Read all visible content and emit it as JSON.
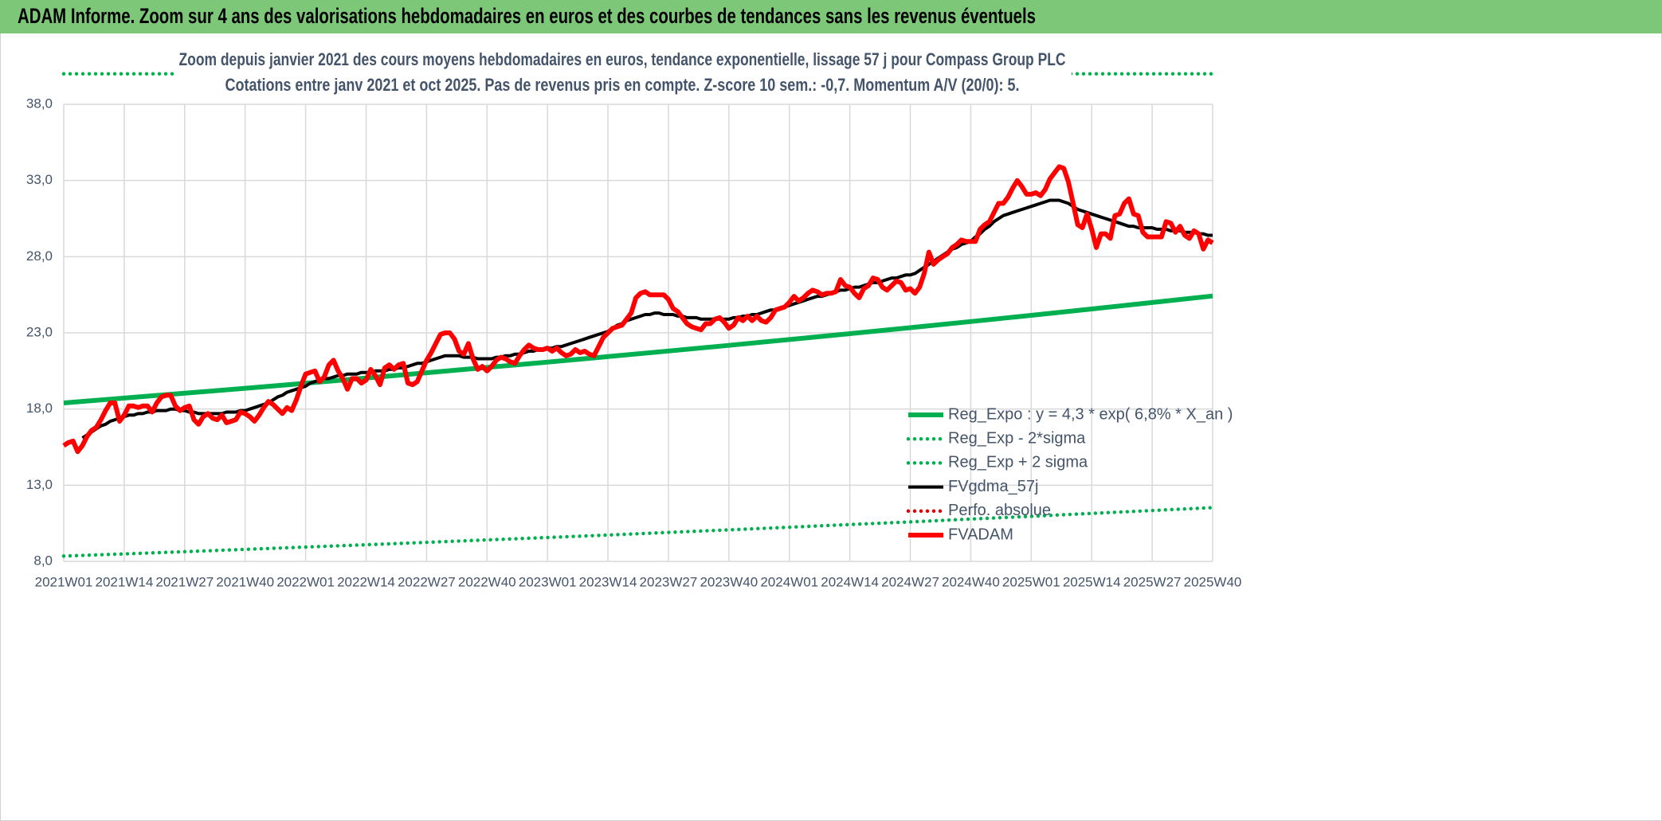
{
  "chart_data": {
    "type": "line",
    "title": "ADAM Informe. Zoom sur 4 ans des valorisations hebdomadaires en euros et des courbes de tendances sans les revenus éventuels",
    "subtitle": [
      "Zoom depuis janvier 2021 des cours moyens hebdomadaires en euros, tendance exponentielle, lissage 57 j pour Compass Group PLC",
      "Cotations entre janv 2021 et oct 2025. Pas de revenus pris en compte. Z-score 10 sem.: -0,7. Momentum A/V (20/0): 5."
    ],
    "categories": [
      "2021W01",
      null,
      null,
      null,
      null,
      null,
      null,
      null,
      null,
      null,
      null,
      null,
      null,
      "2021W14",
      null,
      null,
      null,
      null,
      null,
      null,
      null,
      null,
      null,
      null,
      null,
      null,
      "2021W27",
      null,
      null,
      null,
      null,
      null,
      null,
      null,
      null,
      null,
      null,
      null,
      null,
      "2021W40",
      null,
      null,
      null,
      null,
      null,
      null,
      null,
      null,
      null,
      null,
      null,
      null,
      "2022W01",
      null,
      null,
      null,
      null,
      null,
      null,
      null,
      null,
      null,
      null,
      null,
      null,
      "2022W14",
      null,
      null,
      null,
      null,
      null,
      null,
      null,
      null,
      null,
      null,
      null,
      null,
      "2022W27",
      null,
      null,
      null,
      null,
      null,
      null,
      null,
      null,
      null,
      null,
      null,
      null,
      "2022W40",
      null,
      null,
      null,
      null,
      null,
      null,
      null,
      null,
      null,
      null,
      null,
      null,
      "2023W01",
      null,
      null,
      null,
      null,
      null,
      null,
      null,
      null,
      null,
      null,
      null,
      null,
      "2023W14",
      null,
      null,
      null,
      null,
      null,
      null,
      null,
      null,
      null,
      null,
      null,
      null,
      "2023W27",
      null,
      null,
      null,
      null,
      null,
      null,
      null,
      null,
      null,
      null,
      null,
      null,
      "2023W40",
      null,
      null,
      null,
      null,
      null,
      null,
      null,
      null,
      null,
      null,
      null,
      null,
      "2024W01",
      null,
      null,
      null,
      null,
      null,
      null,
      null,
      null,
      null,
      null,
      null,
      null,
      "2024W14",
      null,
      null,
      null,
      null,
      null,
      null,
      null,
      null,
      null,
      null,
      null,
      null,
      "2024W27",
      null,
      null,
      null,
      null,
      null,
      null,
      null,
      null,
      null,
      null,
      null,
      null,
      "2024W40",
      null,
      null,
      null,
      null,
      null,
      null,
      null,
      null,
      null,
      null,
      null,
      null,
      "2025W01",
      null,
      null,
      null,
      null,
      null,
      null,
      null,
      null,
      null,
      null,
      null,
      null,
      "2025W14",
      null,
      null,
      null,
      null,
      null,
      null,
      null,
      null,
      null,
      null,
      null,
      null,
      "2025W27",
      null,
      null,
      null,
      null,
      null,
      null,
      null,
      null,
      null,
      null,
      null,
      null,
      "2025W40"
    ],
    "ylim": [
      8,
      38
    ],
    "yticks": [
      {
        "value": 8,
        "label": "8,0"
      },
      {
        "value": 13,
        "label": "13,0"
      },
      {
        "value": 18,
        "label": "18,0"
      },
      {
        "value": 23,
        "label": "23,0"
      },
      {
        "value": 28,
        "label": "28,0"
      },
      {
        "value": 33,
        "label": "33,0"
      },
      {
        "value": 38,
        "label": "38,0"
      }
    ],
    "grid": true,
    "legend": "lower right",
    "series": [
      {
        "name": "Reg_Expo : y = 4,3 * exp( 6,8% *  X_an )",
        "color": "#00b050",
        "style": "solid",
        "x": [
          "2021W01",
          "2021W14",
          "2021W27",
          "2021W40",
          "2022W01",
          "2022W14",
          "2022W27",
          "2022W40",
          "2023W01",
          "2023W14",
          "2023W27",
          "2023W40",
          "2024W01",
          "2024W14",
          "2024W27",
          "2024W40",
          "2025W01",
          "2025W14",
          "2025W27",
          "2025W40"
        ],
        "values": [
          18.4,
          18.72,
          19.04,
          19.36,
          19.69,
          20.03,
          20.38,
          20.73,
          21.08,
          21.44,
          21.81,
          22.18,
          22.56,
          22.95,
          23.34,
          23.74,
          24.15,
          24.57,
          24.99,
          25.42
        ]
      },
      {
        "name": "Reg_Exp - 2*sigma",
        "color": "#00b050",
        "style": "dotted",
        "x": [
          "2021W01",
          "2021W14",
          "2021W27",
          "2021W40",
          "2022W01",
          "2022W14",
          "2022W27",
          "2022W40",
          "2023W01",
          "2023W14",
          "2023W27",
          "2023W40",
          "2024W01",
          "2024W14",
          "2024W27",
          "2024W40",
          "2025W01",
          "2025W14",
          "2025W27",
          "2025W40"
        ],
        "values": [
          8.35,
          8.49,
          8.64,
          8.79,
          8.94,
          9.09,
          9.25,
          9.41,
          9.57,
          9.73,
          9.9,
          10.07,
          10.24,
          10.42,
          10.59,
          10.78,
          10.96,
          11.15,
          11.34,
          11.53
        ]
      },
      {
        "name": "Reg_Exp + 2 sigma",
        "color": "#00b050",
        "style": "dotted",
        "x": [
          "2021W01",
          "2025W40"
        ],
        "values": [
          40,
          40
        ]
      },
      {
        "name": "FVgdma_57j",
        "color": "#000000",
        "style": "solid",
        "values": [
          null,
          null,
          null,
          null,
          16.1,
          16.3,
          16.5,
          16.7,
          16.9,
          17.0,
          17.2,
          17.3,
          17.4,
          17.5,
          17.6,
          17.6,
          17.7,
          17.7,
          17.8,
          17.8,
          17.9,
          17.9,
          17.9,
          18.0,
          18.0,
          17.9,
          17.9,
          17.8,
          17.8,
          17.7,
          17.7,
          17.7,
          17.7,
          17.7,
          17.7,
          17.8,
          17.8,
          17.8,
          17.9,
          17.9,
          18.0,
          18.1,
          18.2,
          18.3,
          18.4,
          18.6,
          18.8,
          18.9,
          19.1,
          19.2,
          19.3,
          19.4,
          19.5,
          19.7,
          19.8,
          19.9,
          20.0,
          20.0,
          20.1,
          20.2,
          20.2,
          20.3,
          20.3,
          20.3,
          20.4,
          20.4,
          20.4,
          20.5,
          20.5,
          20.5,
          20.6,
          20.6,
          20.7,
          20.7,
          20.8,
          20.9,
          21.0,
          21.0,
          21.1,
          21.2,
          21.3,
          21.4,
          21.5,
          21.5,
          21.5,
          21.5,
          21.4,
          21.4,
          21.4,
          21.3,
          21.3,
          21.3,
          21.3,
          21.4,
          21.4,
          21.5,
          21.5,
          21.6,
          21.6,
          21.7,
          21.8,
          21.8,
          21.9,
          21.9,
          22.0,
          22.0,
          22.1,
          22.1,
          22.2,
          22.3,
          22.4,
          22.5,
          22.6,
          22.7,
          22.8,
          22.9,
          23.0,
          23.1,
          23.3,
          23.5,
          23.6,
          23.8,
          23.9,
          24.0,
          24.1,
          24.2,
          24.2,
          24.3,
          24.3,
          24.2,
          24.2,
          24.2,
          24.1,
          24.1,
          24.0,
          24.0,
          24.0,
          23.9,
          23.9,
          23.9,
          23.9,
          23.9,
          23.9,
          23.9,
          24.0,
          24.0,
          24.1,
          24.1,
          24.2,
          24.2,
          24.3,
          24.4,
          24.5,
          24.5,
          24.6,
          24.7,
          24.8,
          24.9,
          25.0,
          25.1,
          25.2,
          25.3,
          25.4,
          25.4,
          25.5,
          25.6,
          25.7,
          25.8,
          25.8,
          25.9,
          26.0,
          26.0,
          26.1,
          26.2,
          26.3,
          26.3,
          26.4,
          26.5,
          26.6,
          26.6,
          26.7,
          26.8,
          26.8,
          26.9,
          27.1,
          27.3,
          27.5,
          27.7,
          27.9,
          28.1,
          28.3,
          28.5,
          28.6,
          28.8,
          28.9,
          29.0,
          29.3,
          29.5,
          29.8,
          30.0,
          30.3,
          30.5,
          30.7,
          30.8,
          30.9,
          31.0,
          31.1,
          31.2,
          31.3,
          31.4,
          31.5,
          31.6,
          31.7,
          31.7,
          31.7,
          31.6,
          31.5,
          31.3,
          31.1,
          31.0,
          30.9,
          30.8,
          30.7,
          30.6,
          30.5,
          30.4,
          30.3,
          30.2,
          30.1,
          30.0,
          30.0,
          29.9,
          29.9,
          29.9,
          29.9,
          29.8,
          29.8,
          29.8,
          29.7,
          29.7,
          29.7,
          29.6,
          29.6,
          29.6,
          29.5,
          29.5,
          29.4,
          29.4
        ]
      },
      {
        "name": "Perfo. absolue",
        "color": "#e00000",
        "style": "dotted"
      },
      {
        "name": "FVADAM",
        "color": "#ff0000",
        "style": "solid",
        "values": [
          15.6,
          15.8,
          15.9,
          15.2,
          15.6,
          16.2,
          16.6,
          16.8,
          17.3,
          17.9,
          18.4,
          18.4,
          17.2,
          17.6,
          18.2,
          18.2,
          18.1,
          18.2,
          18.2,
          17.8,
          18.4,
          18.8,
          18.9,
          18.9,
          18.2,
          17.9,
          18.1,
          18.2,
          17.3,
          17.0,
          17.5,
          17.7,
          17.4,
          17.3,
          17.6,
          17.1,
          17.2,
          17.3,
          17.8,
          17.7,
          17.5,
          17.2,
          17.6,
          18.1,
          18.5,
          18.3,
          18.0,
          17.7,
          18.1,
          17.9,
          18.6,
          19.5,
          20.3,
          20.4,
          20.5,
          19.8,
          20.1,
          20.9,
          21.2,
          20.5,
          20.0,
          19.3,
          20.0,
          20.0,
          19.7,
          19.9,
          20.6,
          20.2,
          19.6,
          20.7,
          20.9,
          20.6,
          20.9,
          21.0,
          19.7,
          19.6,
          19.8,
          20.5,
          21.2,
          21.7,
          22.3,
          22.9,
          23.0,
          23.0,
          22.6,
          21.8,
          21.6,
          22.3,
          21.3,
          20.6,
          20.8,
          20.5,
          20.8,
          21.2,
          21.4,
          21.3,
          21.1,
          21.0,
          21.5,
          21.9,
          22.2,
          22.0,
          21.9,
          21.9,
          22.0,
          21.8,
          22.0,
          21.7,
          21.5,
          21.6,
          21.9,
          21.7,
          21.8,
          21.6,
          21.5,
          22.1,
          22.7,
          23.0,
          23.3,
          23.4,
          23.5,
          23.9,
          24.3,
          25.3,
          25.6,
          25.7,
          25.5,
          25.5,
          25.5,
          25.5,
          25.2,
          24.6,
          24.4,
          24.0,
          23.6,
          23.4,
          23.3,
          23.2,
          23.6,
          23.6,
          23.9,
          24.0,
          23.7,
          23.3,
          23.5,
          24.0,
          23.8,
          24.1,
          23.8,
          24.1,
          23.8,
          23.7,
          24.0,
          24.5,
          24.6,
          24.7,
          25.0,
          25.4,
          25.1,
          25.3,
          25.6,
          25.8,
          25.7,
          25.5,
          25.6,
          25.6,
          25.7,
          26.5,
          26.1,
          26.0,
          25.6,
          25.3,
          25.9,
          26.1,
          26.6,
          26.5,
          26.0,
          25.8,
          26.1,
          26.4,
          26.3,
          25.8,
          25.9,
          25.6,
          26.0,
          26.9,
          28.3,
          27.5,
          27.8,
          28.0,
          28.2,
          28.6,
          28.8,
          29.1,
          29.0,
          29.0,
          29.0,
          29.8,
          30.1,
          30.3,
          30.9,
          31.5,
          31.5,
          31.9,
          32.5,
          33.0,
          32.6,
          32.1,
          32.1,
          32.2,
          32.0,
          32.4,
          33.1,
          33.5,
          33.9,
          33.8,
          32.9,
          31.5,
          30.1,
          29.9,
          30.8,
          29.8,
          28.6,
          29.5,
          29.5,
          29.2,
          30.7,
          30.8,
          31.5,
          31.8,
          30.8,
          30.7,
          29.6,
          29.3,
          29.3,
          29.3,
          29.3,
          30.3,
          30.2,
          29.6,
          30.0,
          29.4,
          29.2,
          29.7,
          29.5,
          28.5,
          29.1,
          28.9
        ]
      }
    ]
  }
}
